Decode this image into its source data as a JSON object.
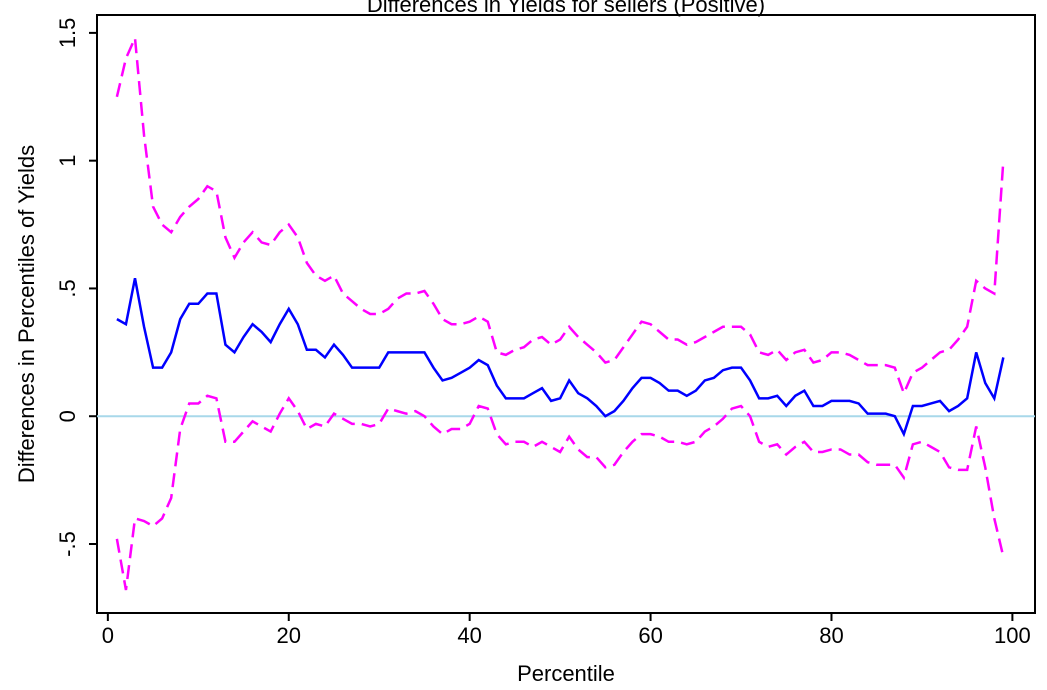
{
  "chart_data": {
    "type": "line",
    "title": "Differences in Yields for sellers (Positive)",
    "x_label": "Percentile",
    "y_label": "Differences in Percentiles of Yields",
    "x": [
      1,
      2,
      3,
      4,
      5,
      6,
      7,
      8,
      9,
      10,
      11,
      12,
      13,
      14,
      15,
      16,
      17,
      18,
      19,
      20,
      21,
      22,
      23,
      24,
      25,
      26,
      27,
      28,
      29,
      30,
      31,
      32,
      33,
      34,
      35,
      36,
      37,
      38,
      39,
      40,
      41,
      42,
      43,
      44,
      45,
      46,
      47,
      48,
      49,
      50,
      51,
      52,
      53,
      54,
      55,
      56,
      57,
      58,
      59,
      60,
      61,
      62,
      63,
      64,
      65,
      66,
      67,
      68,
      69,
      70,
      71,
      72,
      73,
      74,
      75,
      76,
      77,
      78,
      79,
      80,
      81,
      82,
      83,
      84,
      85,
      86,
      87,
      88,
      89,
      90,
      91,
      92,
      93,
      94,
      95,
      96,
      97,
      98,
      99
    ],
    "series": [
      {
        "color": "#ff00ff",
        "dashed": true,
        "values": [
          1.25,
          1.4,
          1.48,
          1.1,
          0.82,
          0.75,
          0.72,
          0.78,
          0.82,
          0.85,
          0.9,
          0.88,
          0.7,
          0.62,
          0.68,
          0.72,
          0.68,
          0.67,
          0.72,
          0.75,
          0.7,
          0.6,
          0.55,
          0.53,
          0.55,
          0.48,
          0.45,
          0.42,
          0.4,
          0.4,
          0.42,
          0.46,
          0.48,
          0.48,
          0.49,
          0.44,
          0.38,
          0.36,
          0.36,
          0.37,
          0.39,
          0.37,
          0.25,
          0.24,
          0.26,
          0.27,
          0.3,
          0.31,
          0.28,
          0.3,
          0.35,
          0.31,
          0.28,
          0.25,
          0.21,
          0.22,
          0.27,
          0.32,
          0.37,
          0.36,
          0.33,
          0.3,
          0.3,
          0.28,
          0.29,
          0.31,
          0.33,
          0.35,
          0.35,
          0.35,
          0.32,
          0.25,
          0.24,
          0.26,
          0.22,
          0.25,
          0.26,
          0.21,
          0.22,
          0.25,
          0.25,
          0.24,
          0.22,
          0.2,
          0.2,
          0.2,
          0.19,
          0.09,
          0.17,
          0.19,
          0.22,
          0.25,
          0.26,
          0.3,
          0.35,
          0.53,
          0.5,
          0.48,
          1.0
        ]
      },
      {
        "color": "#0000ff",
        "dashed": false,
        "values": [
          0.38,
          0.36,
          0.54,
          0.35,
          0.19,
          0.19,
          0.25,
          0.38,
          0.44,
          0.44,
          0.48,
          0.48,
          0.28,
          0.25,
          0.31,
          0.36,
          0.33,
          0.29,
          0.36,
          0.42,
          0.36,
          0.26,
          0.26,
          0.23,
          0.28,
          0.24,
          0.19,
          0.19,
          0.19,
          0.19,
          0.25,
          0.25,
          0.25,
          0.25,
          0.25,
          0.19,
          0.14,
          0.15,
          0.17,
          0.19,
          0.22,
          0.2,
          0.12,
          0.07,
          0.07,
          0.07,
          0.09,
          0.11,
          0.06,
          0.07,
          0.14,
          0.09,
          0.07,
          0.04,
          0.0,
          0.02,
          0.06,
          0.11,
          0.15,
          0.15,
          0.13,
          0.1,
          0.1,
          0.08,
          0.1,
          0.14,
          0.15,
          0.18,
          0.19,
          0.19,
          0.14,
          0.07,
          0.07,
          0.08,
          0.04,
          0.08,
          0.1,
          0.04,
          0.04,
          0.06,
          0.06,
          0.06,
          0.05,
          0.01,
          0.01,
          0.01,
          0.0,
          -0.07,
          0.04,
          0.04,
          0.05,
          0.06,
          0.02,
          0.04,
          0.07,
          0.25,
          0.13,
          0.07,
          0.23
        ]
      },
      {
        "color": "#ff00ff",
        "dashed": true,
        "values": [
          -0.48,
          -0.68,
          -0.4,
          -0.41,
          -0.43,
          -0.4,
          -0.32,
          -0.05,
          0.05,
          0.05,
          0.08,
          0.07,
          -0.1,
          -0.1,
          -0.06,
          -0.02,
          -0.04,
          -0.06,
          0.01,
          0.07,
          0.02,
          -0.05,
          -0.03,
          -0.04,
          0.01,
          -0.01,
          -0.03,
          -0.03,
          -0.04,
          -0.03,
          0.03,
          0.02,
          0.01,
          0.02,
          0.0,
          -0.04,
          -0.07,
          -0.05,
          -0.05,
          -0.03,
          0.04,
          0.03,
          -0.07,
          -0.11,
          -0.1,
          -0.1,
          -0.12,
          -0.1,
          -0.12,
          -0.14,
          -0.08,
          -0.13,
          -0.16,
          -0.16,
          -0.2,
          -0.19,
          -0.14,
          -0.1,
          -0.07,
          -0.07,
          -0.08,
          -0.1,
          -0.1,
          -0.11,
          -0.1,
          -0.06,
          -0.04,
          -0.01,
          0.03,
          0.04,
          0.0,
          -0.1,
          -0.12,
          -0.11,
          -0.15,
          -0.12,
          -0.1,
          -0.14,
          -0.14,
          -0.13,
          -0.13,
          -0.15,
          -0.15,
          -0.18,
          -0.19,
          -0.19,
          -0.19,
          -0.24,
          -0.11,
          -0.1,
          -0.12,
          -0.14,
          -0.2,
          -0.21,
          -0.21,
          -0.04,
          -0.2,
          -0.4,
          -0.55
        ]
      }
    ],
    "reference_line": {
      "y": 0,
      "color": "#a8d8ea"
    },
    "xlim": [
      -1.2,
      102.5
    ],
    "ylim": [
      -0.77,
      1.57
    ],
    "xticks": [
      0,
      20,
      40,
      60,
      80,
      100
    ],
    "yticks": [
      {
        "value": -0.5,
        "label": "-.5"
      },
      0,
      {
        "value": 0.5,
        "label": ".5"
      },
      1,
      1.5
    ]
  }
}
